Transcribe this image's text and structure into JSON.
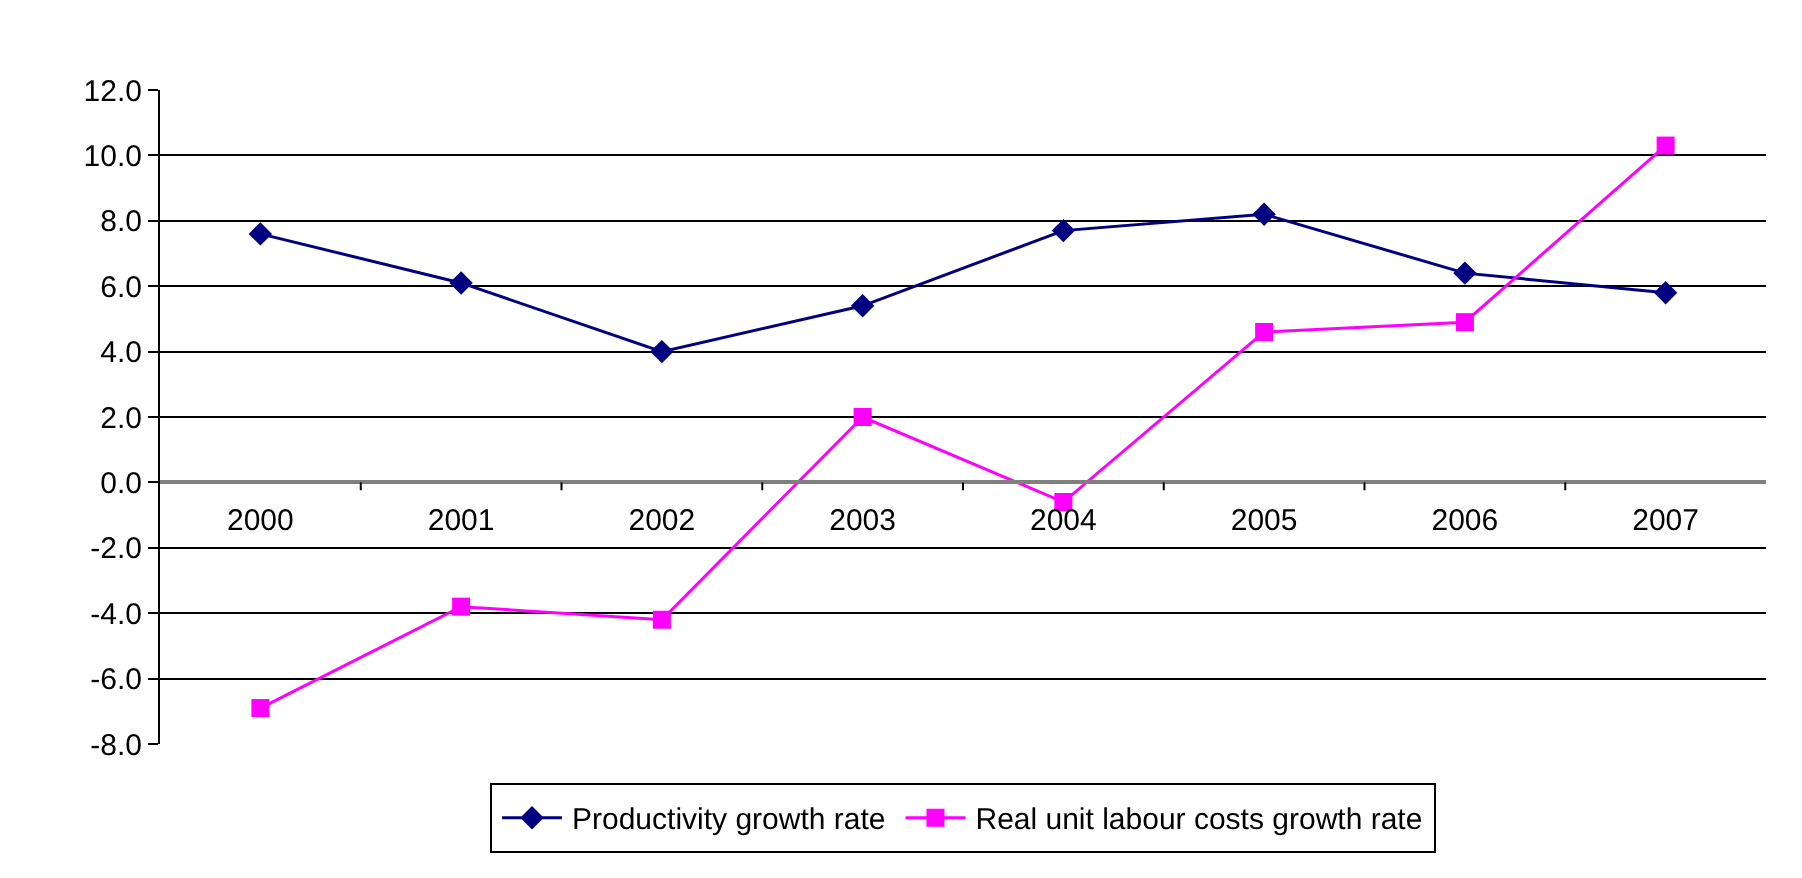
{
  "chart_data": {
    "type": "line",
    "categories": [
      "2000",
      "2001",
      "2002",
      "2003",
      "2004",
      "2005",
      "2006",
      "2007"
    ],
    "series": [
      {
        "name": "Productivity growth rate",
        "color": "#000080",
        "marker": "diamond",
        "values": [
          7.6,
          6.1,
          4.0,
          5.4,
          7.7,
          8.2,
          6.4,
          5.8
        ]
      },
      {
        "name": "Real unit labour costs growth rate",
        "color": "#ff00ff",
        "marker": "square",
        "values": [
          -6.9,
          -3.8,
          -4.2,
          2.0,
          -0.6,
          4.6,
          4.9,
          10.3
        ]
      }
    ],
    "ylim": [
      -8,
      12
    ],
    "yticks": [
      {
        "value": -8,
        "label": "-8.0"
      },
      {
        "value": -6,
        "label": "-6.0"
      },
      {
        "value": -4,
        "label": "-4.0"
      },
      {
        "value": -2,
        "label": "-2.0"
      },
      {
        "value": 0,
        "label": "0.0"
      },
      {
        "value": 2,
        "label": "2.0"
      },
      {
        "value": 4,
        "label": "4.0"
      },
      {
        "value": 6,
        "label": "6.0"
      },
      {
        "value": 8,
        "label": "8.0"
      },
      {
        "value": 10,
        "label": "10.0"
      },
      {
        "value": 12,
        "label": "12.0"
      }
    ],
    "grid": "y",
    "legend": "bottom",
    "line_style": "solid"
  }
}
